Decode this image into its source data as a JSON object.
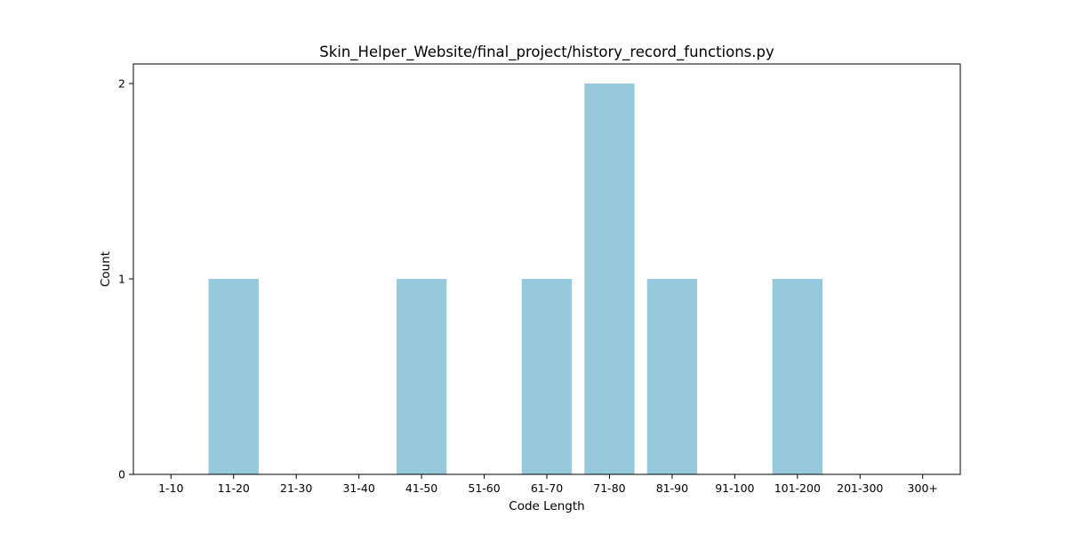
{
  "chart_data": {
    "type": "bar",
    "title": "Skin_Helper_Website/final_project/history_record_functions.py",
    "xlabel": "Code Length",
    "ylabel": "Count",
    "categories": [
      "1-10",
      "11-20",
      "21-30",
      "31-40",
      "41-50",
      "51-60",
      "61-70",
      "71-80",
      "81-90",
      "91-100",
      "101-200",
      "201-300",
      "300+"
    ],
    "values": [
      0,
      1,
      0,
      0,
      1,
      0,
      1,
      2,
      1,
      0,
      1,
      0,
      0
    ],
    "ylim": [
      0,
      2.1
    ],
    "yticks": [
      0,
      1,
      2
    ],
    "grid": false,
    "legend": false,
    "bar_color": "#96c9dc"
  }
}
